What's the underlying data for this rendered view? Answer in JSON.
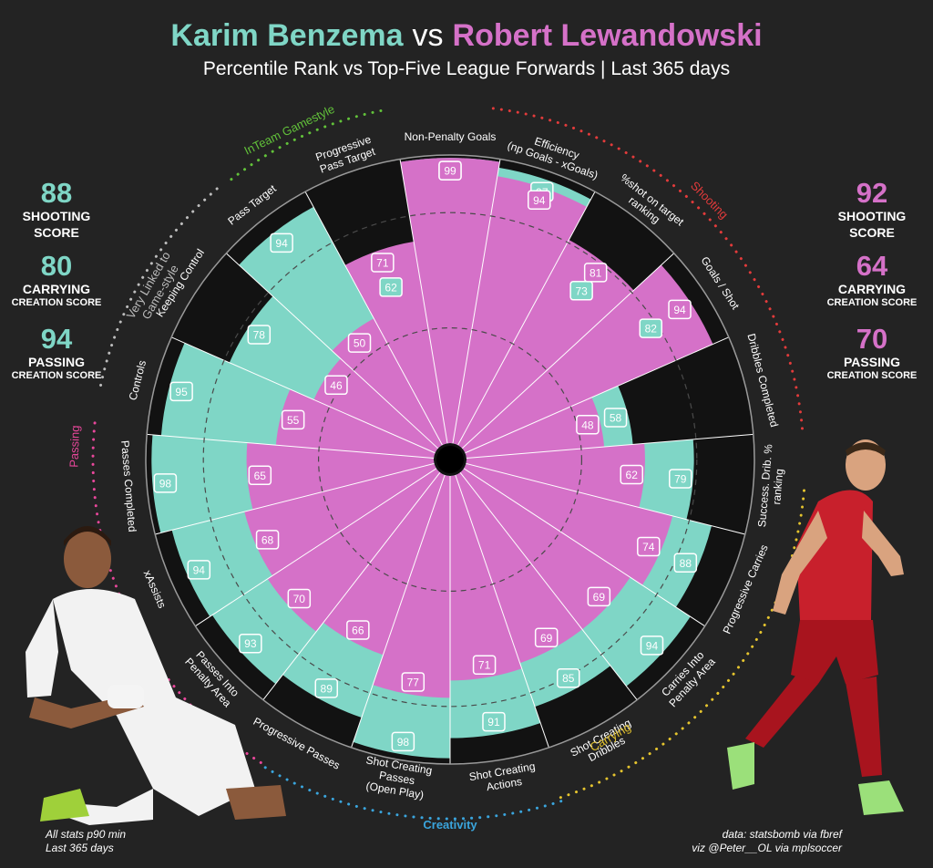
{
  "header": {
    "player_a": "Karim Benzema",
    "vs": "vs",
    "player_b": "Robert Lewandowski",
    "subtitle": "Percentile Rank vs Top-Five League Forwards | Last 365 days"
  },
  "colors": {
    "player_a": "#7fd6c6",
    "player_b": "#d571c8",
    "background": "#232323",
    "shooting": "#e33b3b",
    "passing": "#e8479b",
    "creativity": "#3aa5dd",
    "carrying": "#e5c42e",
    "team_gamestyle": "#62c23a",
    "linked_gamestyle": "#bdbdbd"
  },
  "scores": {
    "player_a": [
      {
        "value": "88",
        "label": "SHOOTING",
        "sub": "SCORE"
      },
      {
        "value": "80",
        "label": "CARRYING",
        "sub": "CREATION SCORE"
      },
      {
        "value": "94",
        "label": "PASSING",
        "sub": "CREATION SCORE"
      }
    ],
    "player_b": [
      {
        "value": "92",
        "label": "SHOOTING",
        "sub": "SCORE"
      },
      {
        "value": "64",
        "label": "CARRYING",
        "sub": "CREATION SCORE"
      },
      {
        "value": "70",
        "label": "PASSING",
        "sub": "CREATION SCORE"
      }
    ]
  },
  "groups": [
    {
      "name": "Shooting",
      "color_key": "shooting"
    },
    {
      "name": "Carrying",
      "color_key": "carrying"
    },
    {
      "name": "Creativity",
      "color_key": "creativity"
    },
    {
      "name": "Passing",
      "color_key": "passing"
    },
    {
      "name": "Very Linked to Game-style",
      "color_key": "linked_gamestyle"
    },
    {
      "name": "InTeam Gamestyle",
      "color_key": "team_gamestyle"
    }
  ],
  "footer": {
    "left_line1": "All stats p90 min",
    "left_line2": "Last 365 days",
    "right_line1": "data: statsbomb via fbref",
    "right_line2": "viz @Peter__OL via mplsoccer"
  },
  "chart_data": {
    "type": "radar",
    "title": "Karim Benzema vs Robert Lewandowski",
    "subtitle": "Percentile Rank vs Top-Five League Forwards | Last 365 days",
    "range": [
      0,
      100
    ],
    "categories": [
      "Non-Penalty Goals",
      "Efficiency (np Goals - xGoals)",
      "%shot on target ranking",
      "Goals / Shot",
      "Dribbles Completed",
      "Success. Drib. % ranking",
      "Progressive Carries",
      "Carries Into Penalty Area",
      "Shot Creating Dribbles",
      "Shot Creating Actions",
      "Shot Creating Passes (Open Play)",
      "Progressive Passes",
      "Passes Into Penalty Area",
      "xAssists",
      "Passes Completed",
      "Controls",
      "Keeping Control",
      "Pass Target",
      "Progressive Pass Target"
    ],
    "series": [
      {
        "name": "Karim Benzema",
        "values": [
          99,
          97,
          73,
          82,
          58,
          79,
          88,
          94,
          85,
          91,
          98,
          89,
          93,
          94,
          98,
          95,
          78,
          94,
          62
        ]
      },
      {
        "name": "Robert Lewandowski",
        "values": [
          99,
          94,
          81,
          94,
          48,
          62,
          74,
          69,
          69,
          71,
          77,
          66,
          70,
          68,
          65,
          55,
          46,
          50,
          71
        ]
      }
    ]
  }
}
